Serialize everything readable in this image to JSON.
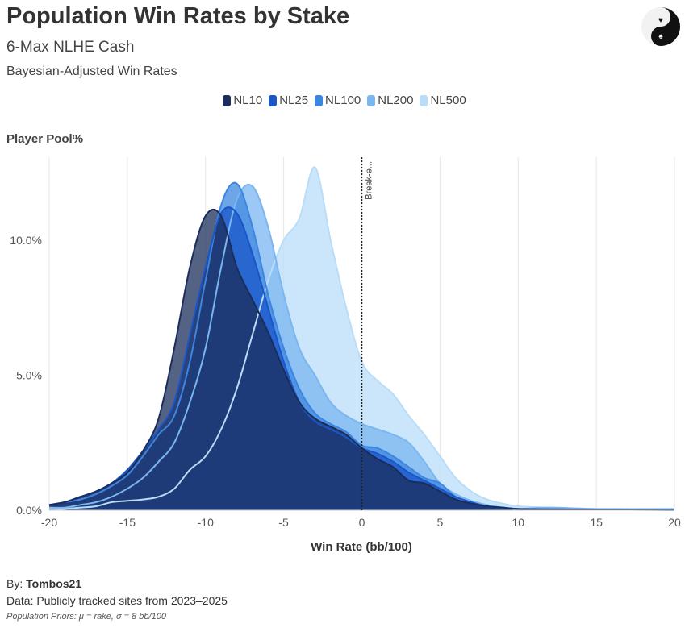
{
  "header": {
    "title": "Population Win Rates by Stake",
    "subtitle": "6-Max NLHE Cash",
    "subtitle2": "Bayesian-Adjusted Win Rates"
  },
  "footer": {
    "by_label": "By: ",
    "author": "Tombos21",
    "data_note": "Data: Publicly tracked sites from 2023–2025",
    "priors": "Population Priors: μ = rake, σ = 8 bb/100"
  },
  "chart_data": {
    "type": "area",
    "title": "Population Win Rates by Stake",
    "xlabel": "Win Rate (bb/100)",
    "ylabel": "Player Pool%",
    "xlim": [
      -20,
      20
    ],
    "ylim": [
      0,
      12.9
    ],
    "xticks": [
      "-20",
      "-15",
      "-10",
      "-5",
      "0",
      "5",
      "10",
      "15",
      "20"
    ],
    "yticks": [
      "0.0%",
      "5.0%",
      "10.0%"
    ],
    "ytick_values": [
      0,
      5,
      10
    ],
    "grid": "vertical",
    "legend_position": "top-center",
    "annotation": {
      "x": 0,
      "label": "Break-e..."
    },
    "x": [
      -20,
      -19,
      -18,
      -17,
      -16,
      -15,
      -14,
      -13,
      -12,
      -11,
      -10,
      -9,
      -8,
      -7,
      -6,
      -5,
      -4,
      -3,
      -2,
      -1,
      0,
      1,
      2,
      3,
      4,
      5,
      6,
      7,
      8,
      9,
      10,
      12,
      15,
      20
    ],
    "series": [
      {
        "name": "NL500",
        "color": "#b9ddf8",
        "values": [
          0.05,
          0.05,
          0.1,
          0.15,
          0.3,
          0.35,
          0.4,
          0.5,
          0.8,
          1.5,
          2,
          3,
          4.5,
          6.5,
          8.5,
          10,
          10.8,
          12.7,
          10,
          7.5,
          5.5,
          4.8,
          4.3,
          3.5,
          2.8,
          2,
          1.2,
          0.7,
          0.4,
          0.25,
          0.15,
          0.1,
          0.05,
          0.0
        ]
      },
      {
        "name": "NL200",
        "color": "#7ab6f0",
        "values": [
          0.1,
          0.1,
          0.2,
          0.3,
          0.5,
          0.8,
          1.2,
          1.8,
          2.5,
          4,
          6,
          9,
          11.5,
          12,
          10.5,
          8,
          6,
          5,
          4,
          3.5,
          3.2,
          3,
          2.8,
          2.5,
          1.8,
          1,
          0.6,
          0.35,
          0.2,
          0.1,
          0.05,
          0.1,
          0.05,
          0.05
        ]
      },
      {
        "name": "NL100",
        "color": "#3d86e0",
        "values": [
          0.2,
          0.3,
          0.4,
          0.6,
          0.9,
          1.3,
          2,
          2.8,
          3.5,
          5.5,
          8.5,
          11.3,
          12.1,
          10.5,
          8,
          6,
          4.5,
          3.6,
          3.2,
          2.9,
          2.4,
          2.3,
          2,
          1.6,
          1.2,
          1,
          0.5,
          0.3,
          0.15,
          0.1,
          0.05,
          0.05,
          0.03,
          0.02
        ]
      },
      {
        "name": "NL25",
        "color": "#1a56c8",
        "values": [
          0.2,
          0.3,
          0.5,
          0.7,
          1,
          1.5,
          2.2,
          3,
          4,
          6.5,
          9,
          11,
          11,
          9.5,
          7.5,
          5.5,
          4,
          3.3,
          3,
          2.7,
          2.3,
          2.1,
          1.8,
          1.4,
          1.1,
          0.8,
          0.5,
          0.3,
          0.15,
          0.1,
          0.05,
          0.03,
          0.02,
          0.01
        ]
      },
      {
        "name": "NL10",
        "color": "#1b2d5b",
        "values": [
          0.2,
          0.3,
          0.5,
          0.7,
          1,
          1.4,
          2.2,
          3.4,
          6,
          9,
          10.9,
          10.9,
          9,
          7.8,
          6.6,
          5.2,
          4,
          3.4,
          3.1,
          2.8,
          2.3,
          1.9,
          1.6,
          1.1,
          1,
          0.7,
          0.4,
          0.25,
          0.15,
          0.1,
          0.05,
          0.03,
          0.02,
          0.01
        ]
      }
    ]
  }
}
